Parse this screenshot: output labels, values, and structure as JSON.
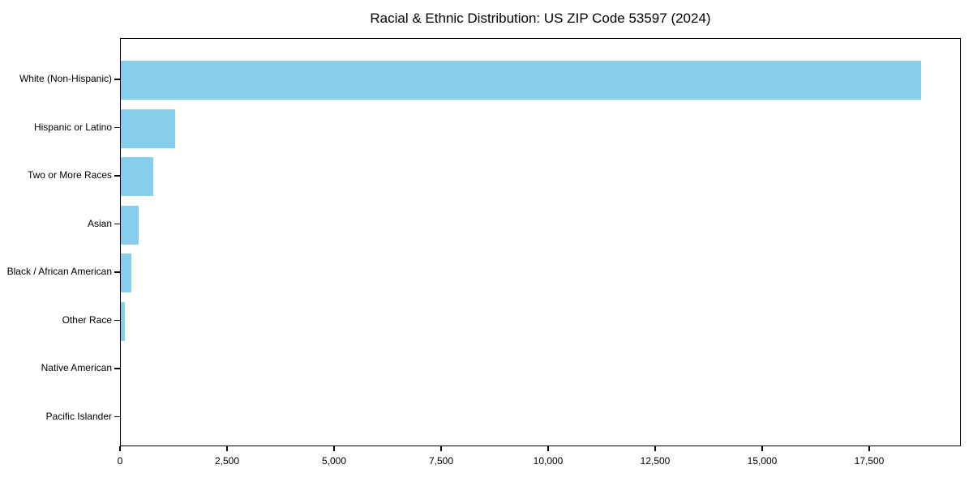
{
  "chart_data": {
    "type": "bar",
    "orientation": "horizontal",
    "title": "Racial & Ethnic Distribution: US ZIP Code 53597 (2024)",
    "categories": [
      "White (Non-Hispanic)",
      "Hispanic or Latino",
      "Two or More Races",
      "Asian",
      "Black / African American",
      "Other Race",
      "Native American",
      "Pacific Islander"
    ],
    "values": [
      18700,
      1270,
      760,
      420,
      250,
      90,
      0,
      0
    ],
    "xlabel": "",
    "ylabel": "",
    "xlim": [
      0,
      19640
    ],
    "xticks": [
      0,
      2500,
      5000,
      7500,
      10000,
      12500,
      15000,
      17500
    ],
    "xtick_labels": [
      "0",
      "2,500",
      "5,000",
      "7,500",
      "10,000",
      "12,500",
      "15,000",
      "17,500"
    ],
    "bar_color": "#87CEEB",
    "axis_color": "#000000",
    "background_color": "#ffffff",
    "grid": false,
    "legend": null
  }
}
